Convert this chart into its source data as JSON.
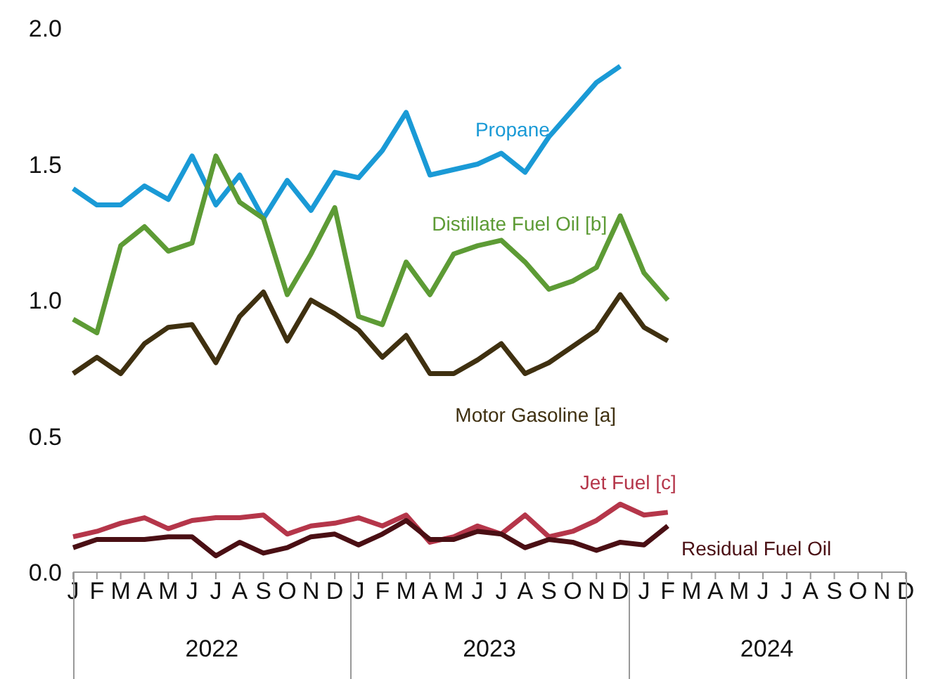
{
  "chart_data": {
    "type": "line",
    "categories": [
      "J",
      "F",
      "M",
      "A",
      "M",
      "J",
      "J",
      "A",
      "S",
      "O",
      "N",
      "D",
      "J",
      "F",
      "M",
      "A",
      "M",
      "J",
      "J",
      "A",
      "S",
      "O",
      "N",
      "D",
      "J",
      "F",
      "M",
      "A",
      "M",
      "J",
      "J",
      "A",
      "S",
      "O",
      "N",
      "D"
    ],
    "annotations": [
      "2022",
      "2023",
      "2024"
    ],
    "ylim": [
      0,
      2
    ],
    "yticks": [
      {
        "value": 0,
        "label": "0.0"
      },
      {
        "value": 0.5,
        "label": "0.5"
      },
      {
        "value": 1,
        "label": "1.0"
      },
      {
        "value": 1.5,
        "label": "1.5"
      },
      {
        "value": 2,
        "label": "2.0"
      }
    ],
    "grid": false,
    "marker": "none",
    "line_style": "solid",
    "series": [
      {
        "name": "Propane",
        "color": "#1a9ad6",
        "values": [
          1.41,
          1.35,
          1.35,
          1.42,
          1.37,
          1.53,
          1.35,
          1.46,
          1.3,
          1.44,
          1.33,
          1.47,
          1.45,
          1.55,
          1.69,
          1.46,
          1.48,
          1.5,
          1.54,
          1.47,
          1.6,
          1.7,
          1.8,
          1.86,
          null,
          null,
          null,
          null,
          null,
          null,
          null,
          null,
          null,
          null,
          null,
          null
        ]
      },
      {
        "name": "Distillate Fuel Oil [b]",
        "color": "#5d9b35",
        "values": [
          0.93,
          0.88,
          1.2,
          1.27,
          1.18,
          1.21,
          1.53,
          1.36,
          1.3,
          1.02,
          1.17,
          1.34,
          0.94,
          0.91,
          1.14,
          1.02,
          1.17,
          1.2,
          1.22,
          1.14,
          1.04,
          1.07,
          1.12,
          1.31,
          1.1,
          1.0,
          null,
          null,
          null,
          null,
          null,
          null,
          null,
          null,
          null,
          null
        ]
      },
      {
        "name": "Motor Gasoline [a]",
        "color": "#3f3010",
        "values": [
          0.73,
          0.79,
          0.73,
          0.84,
          0.9,
          0.91,
          0.77,
          0.94,
          1.03,
          0.85,
          1.0,
          0.95,
          0.89,
          0.79,
          0.87,
          0.73,
          0.73,
          0.78,
          0.84,
          0.73,
          0.77,
          0.83,
          0.89,
          1.02,
          0.9,
          0.85,
          null,
          null,
          null,
          null,
          null,
          null,
          null,
          null,
          null,
          null
        ]
      },
      {
        "name": "Jet Fuel [c]",
        "color": "#b5364a",
        "values": [
          0.13,
          0.15,
          0.18,
          0.2,
          0.16,
          0.19,
          0.2,
          0.2,
          0.21,
          0.14,
          0.17,
          0.18,
          0.2,
          0.17,
          0.21,
          0.11,
          0.13,
          0.17,
          0.14,
          0.21,
          0.13,
          0.15,
          0.19,
          0.25,
          0.21,
          0.22,
          null,
          null,
          null,
          null,
          null,
          null,
          null,
          null,
          null,
          null
        ]
      },
      {
        "name": "Residual Fuel Oil",
        "color": "#4a0f14",
        "values": [
          0.09,
          0.12,
          0.12,
          0.12,
          0.13,
          0.13,
          0.06,
          0.11,
          0.07,
          0.09,
          0.13,
          0.14,
          0.1,
          0.14,
          0.19,
          0.12,
          0.12,
          0.15,
          0.14,
          0.09,
          0.12,
          0.11,
          0.08,
          0.11,
          0.1,
          0.17,
          null,
          null,
          null,
          null,
          null,
          null,
          null,
          null,
          null,
          null
        ]
      }
    ]
  }
}
